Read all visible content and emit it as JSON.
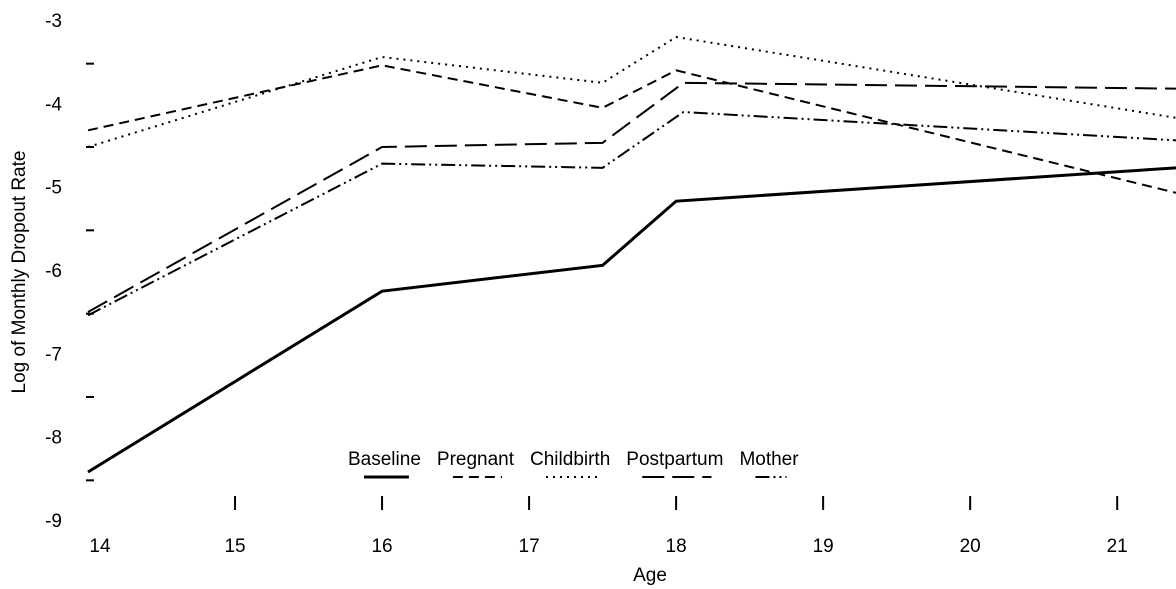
{
  "chart_data": {
    "type": "line",
    "x_label": "Age",
    "y_label": "Log of Monthly Dropout Rate",
    "xlim": [
      14,
      21.4
    ],
    "ylim": [
      -9,
      -3
    ],
    "xticks": [
      14,
      15,
      16,
      17,
      18,
      19,
      20,
      21
    ],
    "yticks": [
      -3,
      -4,
      -5,
      -6,
      -7,
      -8,
      -9
    ],
    "yminorticks": [
      -3.5,
      -4.5,
      -5.5,
      -6.5,
      -7.5,
      -8.5
    ],
    "series": [
      {
        "name": "Baseline",
        "color": "#000000",
        "dash": "none",
        "x": [
          14,
          16,
          17.5,
          18,
          21.4
        ],
        "values": [
          -8.4,
          -6.23,
          -5.92,
          -5.15,
          -4.75
        ]
      },
      {
        "name": "Pregnant",
        "color": "#000000",
        "dash": "10,6",
        "x": [
          14,
          16,
          17.5,
          18,
          21.4
        ],
        "values": [
          -4.3,
          -3.52,
          -4.03,
          -3.58,
          -5.05
        ]
      },
      {
        "name": "Childbirth",
        "color": "#000000",
        "dash": "2,5",
        "x": [
          14,
          16,
          17.5,
          18,
          21.4
        ],
        "values": [
          -4.5,
          -3.42,
          -3.73,
          -3.18,
          -4.15
        ]
      },
      {
        "name": "Postpartum",
        "color": "#000000",
        "dash": "22,8",
        "x": [
          14,
          16,
          17.5,
          18.05,
          21.4
        ],
        "values": [
          -6.48,
          -4.5,
          -4.45,
          -3.73,
          -3.8
        ]
      },
      {
        "name": "Mother",
        "color": "#000000",
        "dash": "14,4,2,4,2,4",
        "x": [
          14,
          16,
          17.5,
          18.05,
          21.4
        ],
        "values": [
          -6.52,
          -4.7,
          -4.75,
          -4.08,
          -4.42
        ]
      }
    ]
  }
}
